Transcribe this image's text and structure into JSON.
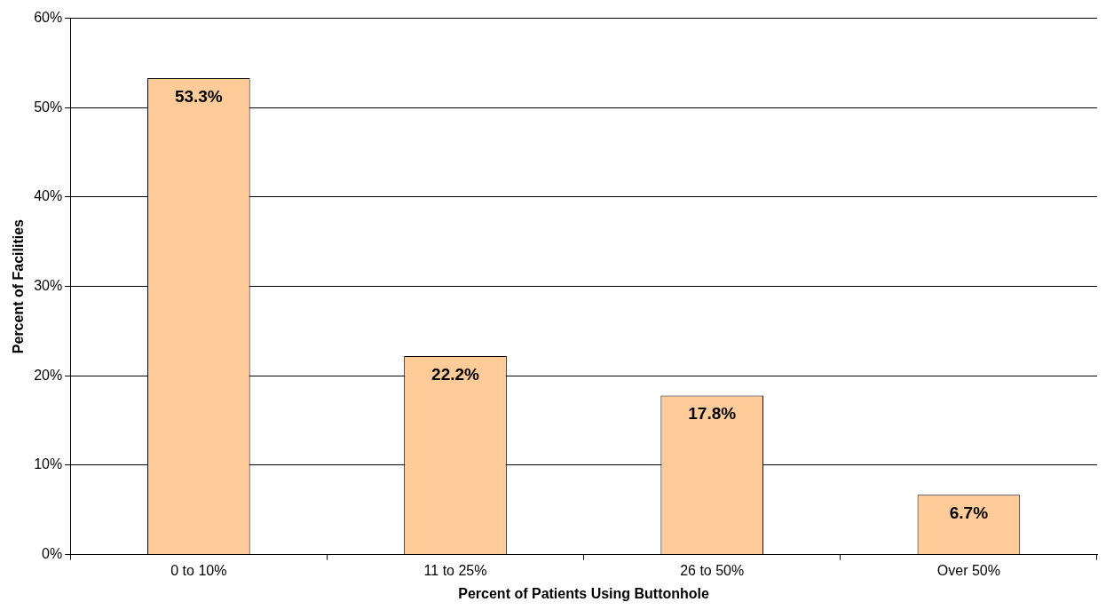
{
  "chart_data": {
    "type": "bar",
    "xlabel": "Percent of Patients Using Buttonhole",
    "ylabel": "Percent of Facilities",
    "categories": [
      "0 to 10%",
      "11 to 25%",
      "26 to 50%",
      "Over 50%"
    ],
    "values": [
      53.3,
      22.2,
      17.8,
      6.7
    ],
    "value_labels": [
      "53.3%",
      "22.2%",
      "17.8%",
      "6.7%"
    ],
    "color": "#ffcc99",
    "ylim": [
      0,
      60
    ],
    "yticks": [
      {
        "value": 0,
        "label": "0%"
      },
      {
        "value": 10,
        "label": "10%"
      },
      {
        "value": 20,
        "label": "20%"
      },
      {
        "value": 30,
        "label": "30%"
      },
      {
        "value": 40,
        "label": "40%"
      },
      {
        "value": 50,
        "label": "50%"
      },
      {
        "value": 60,
        "label": "60%"
      }
    ],
    "grid": "y",
    "legend": false
  }
}
